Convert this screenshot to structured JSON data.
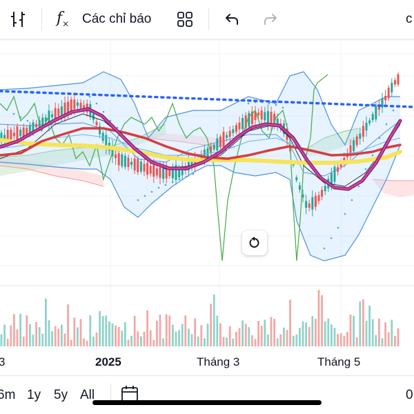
{
  "toolbar": {
    "indicators_label": "Các chỉ báo",
    "right_cut_label": "c",
    "icons": [
      "chart-type-icon",
      "function-fx-icon",
      "layouts-grid-icon",
      "undo-icon",
      "redo-icon"
    ]
  },
  "time_axis": {
    "labels": [
      "3",
      "2025",
      "Tháng 3",
      "Tháng 5"
    ]
  },
  "range_buttons": [
    "6m",
    "1y",
    "5y",
    "All"
  ],
  "bottom_right_label": "0",
  "colors": {
    "up_candle": "#26a69a",
    "down_candle": "#ef5350",
    "ma_short": "#b3245e",
    "ma_long": "#d83c3c",
    "ma_yellow": "#f7e35a",
    "trend_line": "#2962ff",
    "bollinger": "#4a90e2",
    "ichimoku_cloud_green": "#c8e6c9",
    "ichimoku_cloud_red": "#ffcdd2",
    "lagging_span": "#4caf50",
    "parabolic_sar": "#42a5f5"
  }
}
